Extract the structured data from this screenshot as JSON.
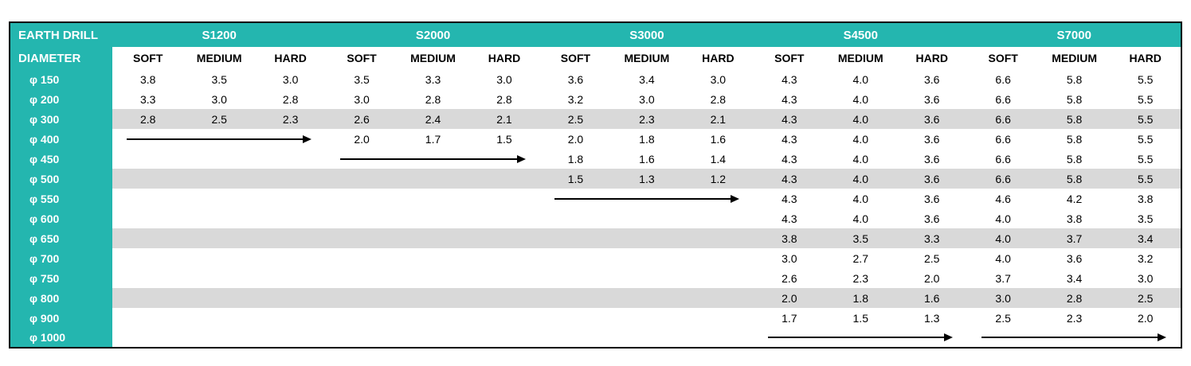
{
  "chart_data": {
    "type": "table",
    "title": "EARTH DRILL",
    "row_header_label": "DIAMETER",
    "model_groups": [
      "S1200",
      "S2000",
      "S3000",
      "S4500",
      "S7000"
    ],
    "condition_headers": [
      "SOFT",
      "MEDIUM",
      "HARD"
    ],
    "rows": [
      {
        "diameter": "φ 150",
        "shaded": false,
        "arrow_groups": [],
        "values": [
          "3.8",
          "3.5",
          "3.0",
          "3.5",
          "3.3",
          "3.0",
          "3.6",
          "3.4",
          "3.0",
          "4.3",
          "4.0",
          "3.6",
          "6.6",
          "5.8",
          "5.5"
        ]
      },
      {
        "diameter": "φ 200",
        "shaded": false,
        "arrow_groups": [],
        "values": [
          "3.3",
          "3.0",
          "2.8",
          "3.0",
          "2.8",
          "2.8",
          "3.2",
          "3.0",
          "2.8",
          "4.3",
          "4.0",
          "3.6",
          "6.6",
          "5.8",
          "5.5"
        ]
      },
      {
        "diameter": "φ 300",
        "shaded": true,
        "arrow_groups": [],
        "values": [
          "2.8",
          "2.5",
          "2.3",
          "2.6",
          "2.4",
          "2.1",
          "2.5",
          "2.3",
          "2.1",
          "4.3",
          "4.0",
          "3.6",
          "6.6",
          "5.8",
          "5.5"
        ]
      },
      {
        "diameter": "φ 400",
        "shaded": false,
        "arrow_groups": [
          0
        ],
        "values": [
          "",
          "",
          "",
          "2.0",
          "1.7",
          "1.5",
          "2.0",
          "1.8",
          "1.6",
          "4.3",
          "4.0",
          "3.6",
          "6.6",
          "5.8",
          "5.5"
        ]
      },
      {
        "diameter": "φ 450",
        "shaded": false,
        "arrow_groups": [
          1
        ],
        "values": [
          "",
          "",
          "",
          "",
          "",
          "",
          "1.8",
          "1.6",
          "1.4",
          "4.3",
          "4.0",
          "3.6",
          "6.6",
          "5.8",
          "5.5"
        ]
      },
      {
        "diameter": "φ 500",
        "shaded": true,
        "arrow_groups": [],
        "values": [
          "",
          "",
          "",
          "",
          "",
          "",
          "1.5",
          "1.3",
          "1.2",
          "4.3",
          "4.0",
          "3.6",
          "6.6",
          "5.8",
          "5.5"
        ]
      },
      {
        "diameter": "φ 550",
        "shaded": false,
        "arrow_groups": [
          2
        ],
        "values": [
          "",
          "",
          "",
          "",
          "",
          "",
          "",
          "",
          "",
          "4.3",
          "4.0",
          "3.6",
          "4.6",
          "4.2",
          "3.8"
        ]
      },
      {
        "diameter": "φ 600",
        "shaded": false,
        "arrow_groups": [],
        "values": [
          "",
          "",
          "",
          "",
          "",
          "",
          "",
          "",
          "",
          "4.3",
          "4.0",
          "3.6",
          "4.0",
          "3.8",
          "3.5"
        ]
      },
      {
        "diameter": "φ 650",
        "shaded": true,
        "arrow_groups": [],
        "values": [
          "",
          "",
          "",
          "",
          "",
          "",
          "",
          "",
          "",
          "3.8",
          "3.5",
          "3.3",
          "4.0",
          "3.7",
          "3.4"
        ]
      },
      {
        "diameter": "φ 700",
        "shaded": false,
        "arrow_groups": [],
        "values": [
          "",
          "",
          "",
          "",
          "",
          "",
          "",
          "",
          "",
          "3.0",
          "2.7",
          "2.5",
          "4.0",
          "3.6",
          "3.2"
        ]
      },
      {
        "diameter": "φ 750",
        "shaded": false,
        "arrow_groups": [],
        "values": [
          "",
          "",
          "",
          "",
          "",
          "",
          "",
          "",
          "",
          "2.6",
          "2.3",
          "2.0",
          "3.7",
          "3.4",
          "3.0"
        ]
      },
      {
        "diameter": "φ 800",
        "shaded": true,
        "arrow_groups": [],
        "values": [
          "",
          "",
          "",
          "",
          "",
          "",
          "",
          "",
          "",
          "2.0",
          "1.8",
          "1.6",
          "3.0",
          "2.8",
          "2.5"
        ]
      },
      {
        "diameter": "φ 900",
        "shaded": false,
        "arrow_groups": [],
        "values": [
          "",
          "",
          "",
          "",
          "",
          "",
          "",
          "",
          "",
          "1.7",
          "1.5",
          "1.3",
          "2.5",
          "2.3",
          "2.0"
        ]
      },
      {
        "diameter": "φ 1000",
        "shaded": false,
        "arrow_groups": [
          3,
          4
        ],
        "values": [
          "",
          "",
          "",
          "",
          "",
          "",
          "",
          "",
          "",
          "",
          "",
          "",
          "",
          "",
          ""
        ]
      }
    ]
  },
  "colors": {
    "header_teal": "#24B6AF",
    "stripe_gray": "#D9D9D9",
    "arrow_black": "#000000",
    "border_black": "#000000"
  }
}
